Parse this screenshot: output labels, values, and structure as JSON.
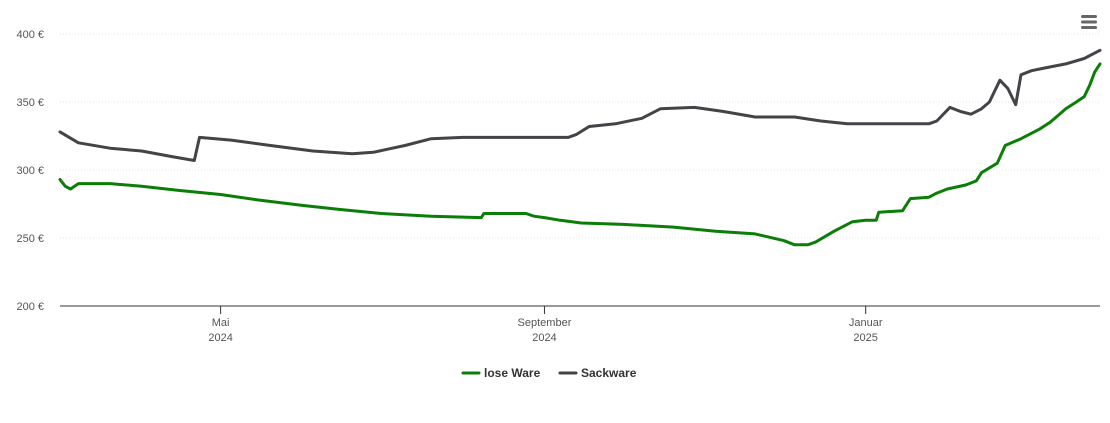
{
  "menu": {
    "icon": "hamburger-menu-icon"
  },
  "chart_data": {
    "type": "line",
    "title": "",
    "xlabel": "",
    "ylabel": "",
    "ylim": [
      200,
      400
    ],
    "y_ticks": [
      {
        "value": 400,
        "label": "400 €"
      },
      {
        "value": 350,
        "label": "350 €"
      },
      {
        "value": 300,
        "label": "300 €"
      },
      {
        "value": 250,
        "label": "250 €"
      },
      {
        "value": 200,
        "label": "200 €"
      }
    ],
    "x_range": [
      "2024-03-01",
      "2025-03-31"
    ],
    "x_ticks": [
      {
        "date": "2024-05-01",
        "line1": "Mai",
        "line2": "2024"
      },
      {
        "date": "2024-09-01",
        "line1": "September",
        "line2": "2024"
      },
      {
        "date": "2025-01-01",
        "line1": "Januar",
        "line2": "2025"
      }
    ],
    "grid": true,
    "legend_position": "bottom-center",
    "series": [
      {
        "name": "lose Ware",
        "color": "#0a7e07",
        "points": [
          [
            "2024-03-01",
            293
          ],
          [
            "2024-03-03",
            288
          ],
          [
            "2024-03-05",
            286
          ],
          [
            "2024-03-08",
            290
          ],
          [
            "2024-03-20",
            290
          ],
          [
            "2024-04-01",
            288
          ],
          [
            "2024-04-15",
            285
          ],
          [
            "2024-05-01",
            282
          ],
          [
            "2024-05-15",
            278
          ],
          [
            "2024-06-01",
            274
          ],
          [
            "2024-06-15",
            271
          ],
          [
            "2024-07-01",
            268
          ],
          [
            "2024-07-20",
            266
          ],
          [
            "2024-08-08",
            265
          ],
          [
            "2024-08-09",
            268
          ],
          [
            "2024-08-25",
            268
          ],
          [
            "2024-08-28",
            266
          ],
          [
            "2024-09-01",
            265
          ],
          [
            "2024-09-07",
            263
          ],
          [
            "2024-09-15",
            261
          ],
          [
            "2024-10-01",
            260
          ],
          [
            "2024-10-20",
            258
          ],
          [
            "2024-11-05",
            255
          ],
          [
            "2024-11-20",
            253
          ],
          [
            "2024-12-01",
            248
          ],
          [
            "2024-12-05",
            245
          ],
          [
            "2024-12-10",
            245
          ],
          [
            "2024-12-13",
            247
          ],
          [
            "2024-12-20",
            255
          ],
          [
            "2024-12-27",
            262
          ],
          [
            "2025-01-01",
            263
          ],
          [
            "2025-01-05",
            263
          ],
          [
            "2025-01-06",
            269
          ],
          [
            "2025-01-15",
            270
          ],
          [
            "2025-01-18",
            279
          ],
          [
            "2025-01-25",
            280
          ],
          [
            "2025-01-28",
            283
          ],
          [
            "2025-02-01",
            286
          ],
          [
            "2025-02-08",
            289
          ],
          [
            "2025-02-12",
            292
          ],
          [
            "2025-02-14",
            298
          ],
          [
            "2025-02-20",
            305
          ],
          [
            "2025-02-23",
            318
          ],
          [
            "2025-03-01",
            323
          ],
          [
            "2025-03-08",
            330
          ],
          [
            "2025-03-12",
            335
          ],
          [
            "2025-03-15",
            340
          ],
          [
            "2025-03-18",
            345
          ],
          [
            "2025-03-22",
            350
          ],
          [
            "2025-03-25",
            354
          ],
          [
            "2025-03-27",
            362
          ],
          [
            "2025-03-29",
            372
          ],
          [
            "2025-03-31",
            378
          ]
        ]
      },
      {
        "name": "Sackware",
        "color": "#434348",
        "points": [
          [
            "2024-03-01",
            328
          ],
          [
            "2024-03-08",
            320
          ],
          [
            "2024-03-20",
            316
          ],
          [
            "2024-04-01",
            314
          ],
          [
            "2024-04-12",
            310
          ],
          [
            "2024-04-21",
            307
          ],
          [
            "2024-04-23",
            324
          ],
          [
            "2024-05-05",
            322
          ],
          [
            "2024-05-20",
            318
          ],
          [
            "2024-06-05",
            314
          ],
          [
            "2024-06-20",
            312
          ],
          [
            "2024-06-28",
            313
          ],
          [
            "2024-07-10",
            318
          ],
          [
            "2024-07-20",
            323
          ],
          [
            "2024-08-01",
            324
          ],
          [
            "2024-08-20",
            324
          ],
          [
            "2024-09-01",
            324
          ],
          [
            "2024-09-10",
            324
          ],
          [
            "2024-09-13",
            326
          ],
          [
            "2024-09-18",
            332
          ],
          [
            "2024-09-28",
            334
          ],
          [
            "2024-10-08",
            338
          ],
          [
            "2024-10-15",
            345
          ],
          [
            "2024-10-28",
            346
          ],
          [
            "2024-11-08",
            343
          ],
          [
            "2024-11-20",
            339
          ],
          [
            "2024-12-05",
            339
          ],
          [
            "2024-12-15",
            336
          ],
          [
            "2024-12-25",
            334
          ],
          [
            "2025-01-01",
            334
          ],
          [
            "2025-01-15",
            334
          ],
          [
            "2025-01-25",
            334
          ],
          [
            "2025-01-28",
            336
          ],
          [
            "2025-02-02",
            346
          ],
          [
            "2025-02-06",
            343
          ],
          [
            "2025-02-10",
            341
          ],
          [
            "2025-02-14",
            345
          ],
          [
            "2025-02-17",
            350
          ],
          [
            "2025-02-21",
            366
          ],
          [
            "2025-02-24",
            360
          ],
          [
            "2025-02-27",
            348
          ],
          [
            "2025-03-01",
            370
          ],
          [
            "2025-03-05",
            373
          ],
          [
            "2025-03-10",
            375
          ],
          [
            "2025-03-18",
            378
          ],
          [
            "2025-03-25",
            382
          ],
          [
            "2025-03-31",
            388
          ]
        ]
      }
    ]
  }
}
